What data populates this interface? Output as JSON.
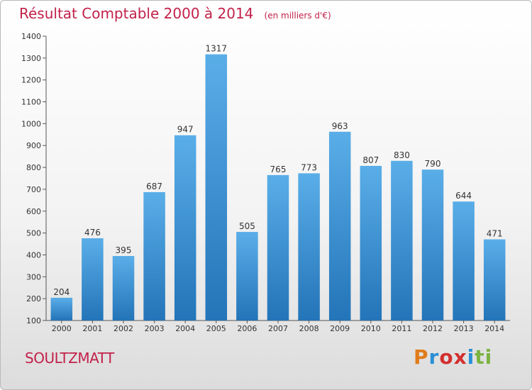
{
  "title": "Résultat Comptable 2000 à 2014",
  "subtitle": "(en milliers d'€)",
  "commune": "SOULTZMATT",
  "logo": {
    "text": "Proxiti",
    "colors": [
      "#e07b1a",
      "#2a8fd6",
      "#d32f2f",
      "#7cb342"
    ]
  },
  "colors": {
    "bar_top": "#5aaee8",
    "bar_bottom": "#2374b8",
    "title": "#c2214a"
  },
  "chart_data": {
    "type": "bar",
    "title": "Résultat Comptable 2000 à 2014",
    "subtitle": "(en milliers d'€)",
    "xlabel": "",
    "ylabel": "",
    "categories": [
      "2000",
      "2001",
      "2002",
      "2003",
      "2004",
      "2005",
      "2006",
      "2007",
      "2008",
      "2009",
      "2010",
      "2011",
      "2012",
      "2013",
      "2014"
    ],
    "values": [
      204,
      476,
      395,
      687,
      947,
      1317,
      505,
      765,
      773,
      963,
      807,
      830,
      790,
      644,
      471
    ],
    "ylim": [
      100,
      1400
    ],
    "yticks": [
      100,
      200,
      300,
      400,
      500,
      600,
      700,
      800,
      900,
      1000,
      1100,
      1200,
      1300,
      1400
    ],
    "grid": false,
    "legend": "none"
  }
}
